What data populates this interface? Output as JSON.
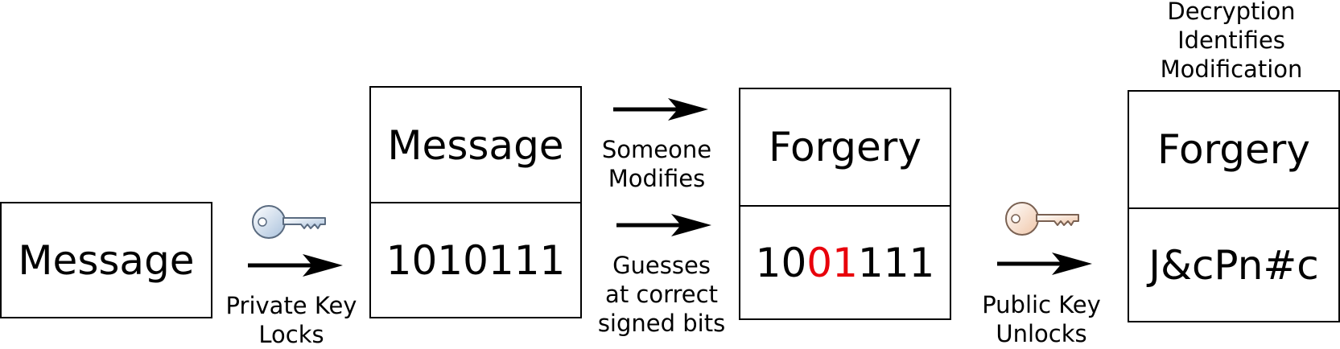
{
  "stage1": {
    "text": "Message"
  },
  "step1": {
    "caption_line1": "Private Key",
    "caption_line2": "Locks",
    "key_icon": "key-blue-icon"
  },
  "stage2": {
    "top": "Message",
    "bottom": "1010111"
  },
  "step2": {
    "upper_line1": "Someone",
    "upper_line2": "Modifies",
    "lower_line1": "Guesses",
    "lower_line2": "at correct",
    "lower_line3": "signed bits"
  },
  "stage3": {
    "top": "Forgery",
    "bits_prefix": "10",
    "bits_changed": "01",
    "bits_suffix": "111"
  },
  "step3": {
    "caption_line1": "Public Key",
    "caption_line2": "Unlocks",
    "key_icon": "key-peach-icon"
  },
  "stage4": {
    "heading_line1": "Decryption",
    "heading_line2": "Identifies",
    "heading_line3": "Modification",
    "top": "Forgery",
    "bottom": "J&cPn#c"
  },
  "colors": {
    "modified_bits": "#e8000b",
    "private_key": "#c9d9ea",
    "public_key": "#f7dcc8"
  }
}
